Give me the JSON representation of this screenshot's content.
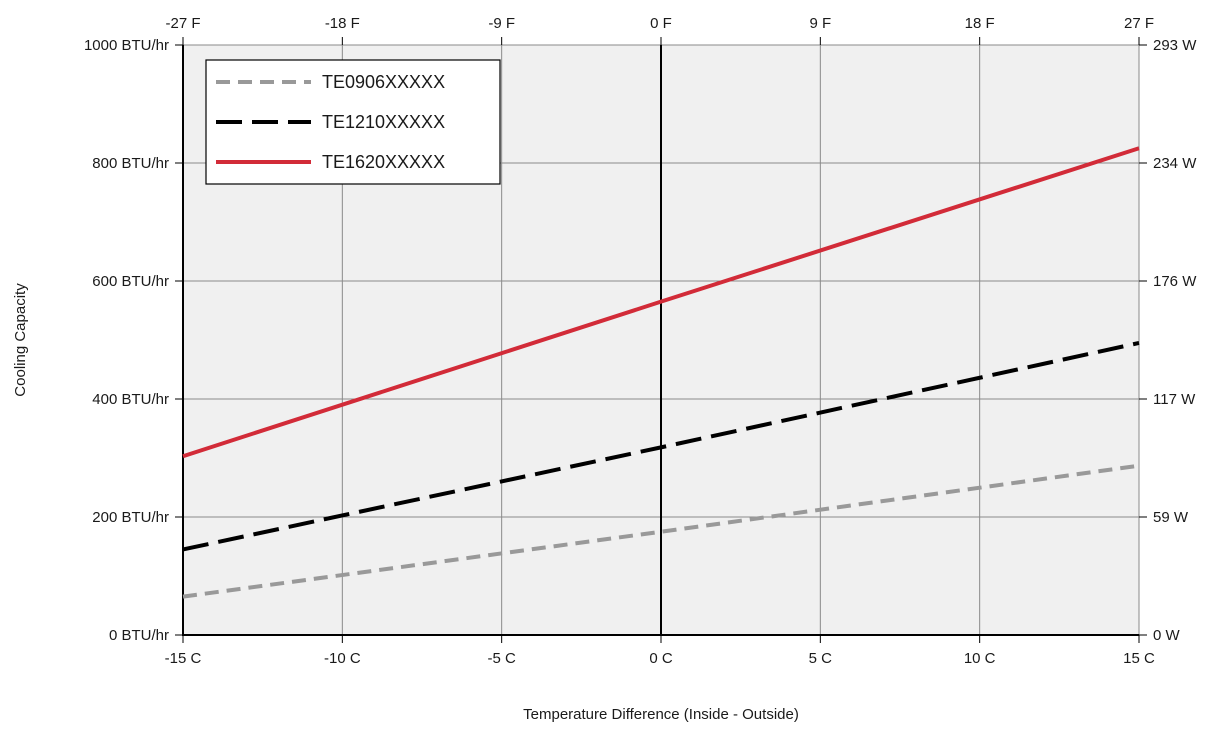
{
  "chart_data": {
    "type": "line",
    "title": "",
    "xlabel": "Temperature Difference (Inside - Outside)",
    "ylabel": "Cooling Capacity",
    "xlim": [
      -15,
      15
    ],
    "ylim": [
      0,
      1000
    ],
    "grid": true,
    "legend_position": "top-left",
    "x_ticks": [
      -15,
      -10,
      -5,
      0,
      5,
      10,
      15
    ],
    "x_tick_labels": [
      "-15 C",
      "-10 C",
      "-5 C",
      "0 C",
      "5 C",
      "10 C",
      "15 C"
    ],
    "x_top_tick_labels": [
      "-27 F",
      "-18 F",
      "-9 F",
      "0 F",
      "9 F",
      "18 F",
      "27 F"
    ],
    "y_ticks": [
      0,
      200,
      400,
      600,
      800,
      1000
    ],
    "y_tick_labels": [
      "0 BTU/hr",
      "200 BTU/hr",
      "400 BTU/hr",
      "600 BTU/hr",
      "800 BTU/hr",
      "1000 BTU/hr"
    ],
    "y_right_tick_labels": [
      "0 W",
      "59 W",
      "117 W",
      "176 W",
      "234 W",
      "293 W"
    ],
    "series": [
      {
        "name": "TE0906XXXXX",
        "color": "#999999",
        "dash": "dashed-short",
        "x": [
          -15,
          0,
          15
        ],
        "y": [
          65,
          175,
          287
        ]
      },
      {
        "name": "TE1210XXXXX",
        "color": "#000000",
        "dash": "dashed-long",
        "x": [
          -15,
          0,
          15
        ],
        "y": [
          145,
          318,
          495
        ]
      },
      {
        "name": "TE1620XXXXX",
        "color": "#d22b38",
        "dash": "solid",
        "x": [
          -15,
          0,
          15
        ],
        "y": [
          303,
          565,
          825
        ]
      }
    ]
  }
}
